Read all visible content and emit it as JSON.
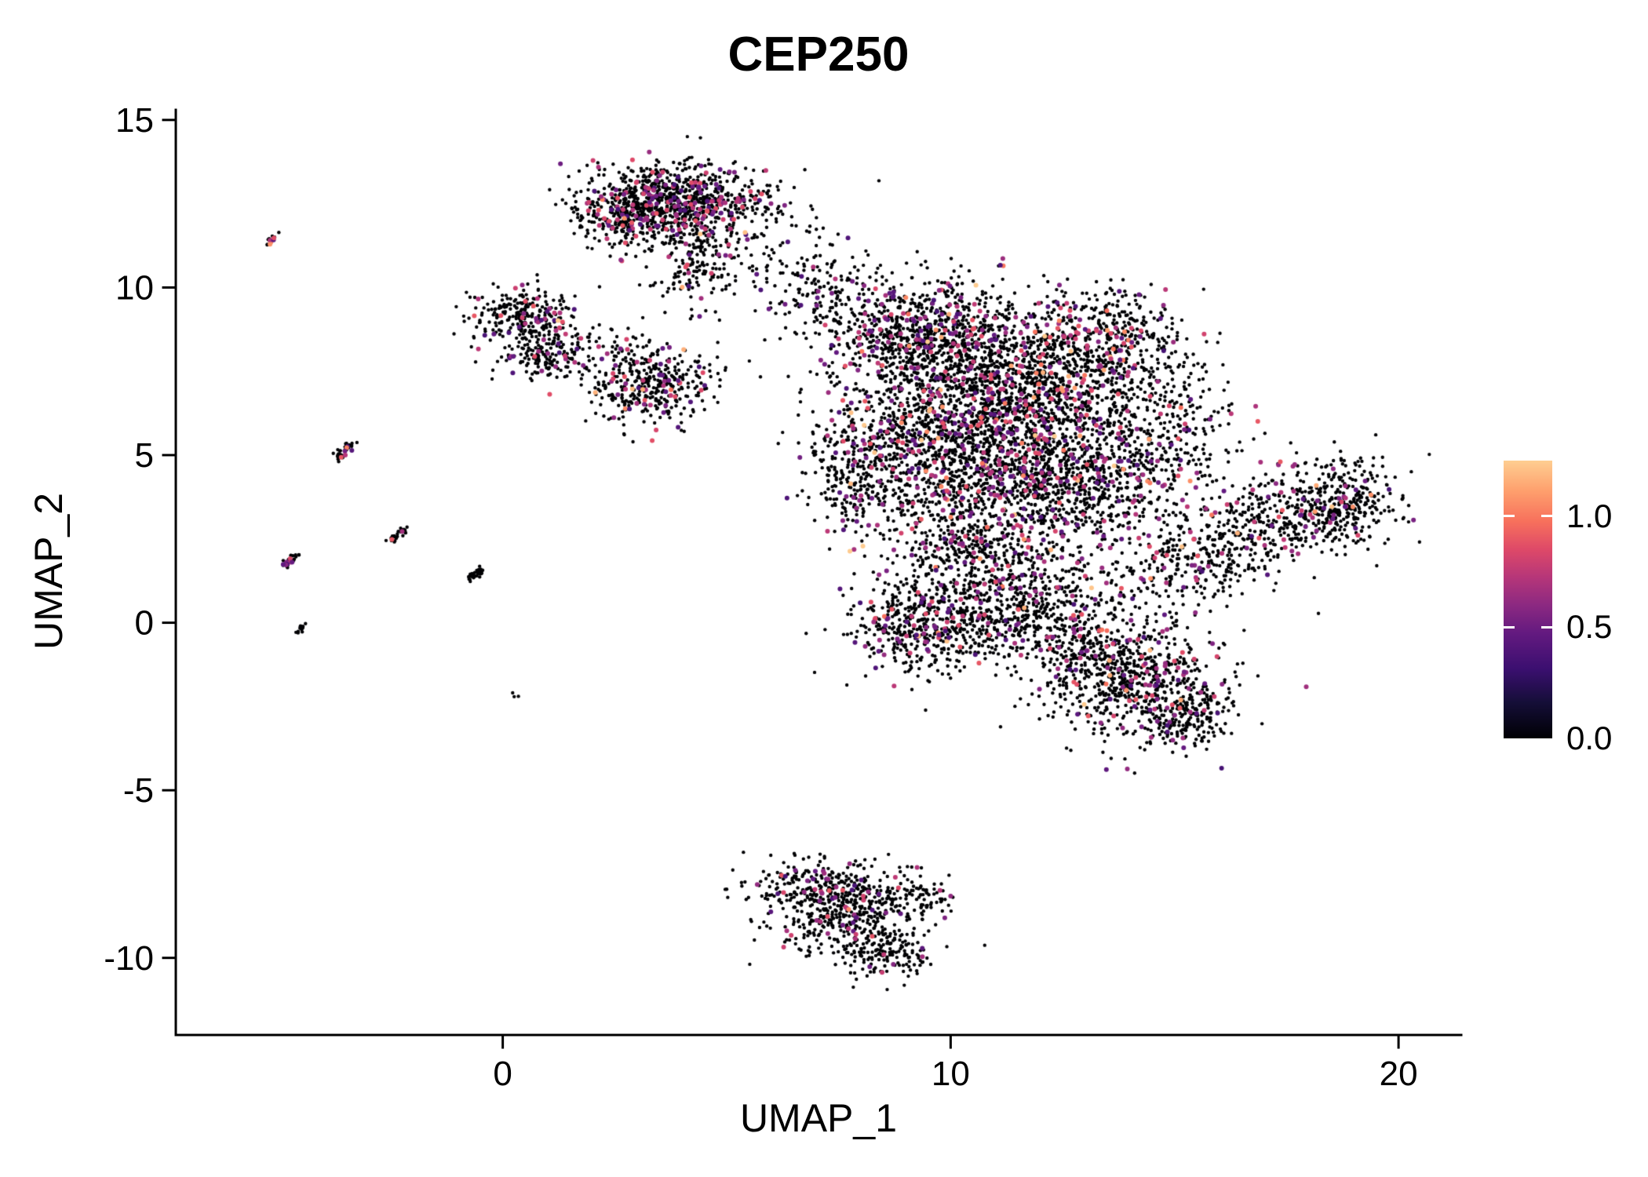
{
  "title": "CEP250",
  "x_axis": {
    "label": "UMAP_1",
    "ticks": [
      0,
      10,
      20
    ]
  },
  "y_axis": {
    "label": "UMAP_2",
    "ticks": [
      15,
      10,
      5,
      0,
      -5,
      -10
    ]
  },
  "legend": {
    "domain": [
      0,
      1.25
    ],
    "ticks": [
      {
        "value": 1.0,
        "label": "1.0"
      },
      {
        "value": 0.5,
        "label": "0.5"
      },
      {
        "value": 0.0,
        "label": "0.0"
      }
    ]
  },
  "chart_data": {
    "type": "scatter",
    "title": "CEP250",
    "xlabel": "UMAP_1",
    "ylabel": "UMAP_2",
    "xlim": [
      -7.3,
      21.4
    ],
    "ylim": [
      -12.3,
      15.3
    ],
    "x_ticks": [
      0,
      10,
      20
    ],
    "y_ticks": [
      15,
      10,
      5,
      0,
      -5,
      -10
    ],
    "grid": false,
    "legend_position": "right",
    "color_scale": {
      "name": "magma",
      "domain": [
        0,
        1.25
      ],
      "stops": [
        [
          0.0,
          "#000004"
        ],
        [
          0.13,
          "#150E38"
        ],
        [
          0.25,
          "#3B0F70"
        ],
        [
          0.38,
          "#641A80"
        ],
        [
          0.48,
          "#8C2981"
        ],
        [
          0.58,
          "#B63679"
        ],
        [
          0.68,
          "#DE4968"
        ],
        [
          0.78,
          "#F7705C"
        ],
        [
          0.89,
          "#FE9F6D"
        ],
        [
          1.0,
          "#FECE91"
        ]
      ]
    },
    "point_style": {
      "radius_zero": 2.2,
      "radius_expressed": 3.0
    },
    "seed": 42,
    "clusters": [
      {
        "name": "top-blob-core",
        "cx": 3.9,
        "cy": 12.6,
        "sx": 1.05,
        "sy": 0.55,
        "n": 780,
        "pm": 0.16,
        "ph": 0.012
      },
      {
        "name": "top-blob-left",
        "cx": 2.9,
        "cy": 12.1,
        "sx": 0.55,
        "sy": 0.5,
        "n": 240,
        "pm": 0.17,
        "ph": 0.01
      },
      {
        "name": "top-blob-tail",
        "cx": 4.3,
        "cy": 10.9,
        "sx": 0.45,
        "sy": 0.75,
        "n": 210,
        "pm": 0.12,
        "ph": 0.005
      },
      {
        "name": "top-bridge",
        "cx": 6.0,
        "cy": 11.4,
        "sx": 0.85,
        "sy": 0.75,
        "n": 90,
        "pm": 0.05,
        "ph": 0
      },
      {
        "name": "top-bridge-2",
        "cx": 6.7,
        "cy": 10.2,
        "sx": 0.5,
        "sy": 0.5,
        "n": 40,
        "pm": 0.04,
        "ph": 0
      },
      {
        "name": "left-blob-upper",
        "cx": 0.45,
        "cy": 9.1,
        "sx": 0.6,
        "sy": 0.45,
        "n": 270,
        "pm": 0.1,
        "ph": 0.004
      },
      {
        "name": "left-blob-lower",
        "cx": 0.95,
        "cy": 7.95,
        "sx": 0.5,
        "sy": 0.35,
        "n": 150,
        "pm": 0.1,
        "ph": 0.004
      },
      {
        "name": "left-bridge",
        "cx": 2.2,
        "cy": 8.4,
        "sx": 0.55,
        "sy": 0.3,
        "n": 30,
        "pm": 0.05,
        "ph": 0
      },
      {
        "name": "mid-blob",
        "cx": 3.3,
        "cy": 7.1,
        "sx": 0.7,
        "sy": 0.55,
        "n": 400,
        "pm": 0.13,
        "ph": 0.006
      },
      {
        "name": "main-nw",
        "cx": 9.4,
        "cy": 8.6,
        "sx": 1.1,
        "sy": 0.85,
        "n": 850,
        "pm": 0.13,
        "ph": 0.015
      },
      {
        "name": "main-n",
        "cx": 11.8,
        "cy": 7.2,
        "sx": 1.4,
        "sy": 1.1,
        "n": 1300,
        "pm": 0.14,
        "ph": 0.02
      },
      {
        "name": "main-w",
        "cx": 9.8,
        "cy": 5.2,
        "sx": 1.2,
        "sy": 1.1,
        "n": 950,
        "pm": 0.12,
        "ph": 0.015
      },
      {
        "name": "main-c",
        "cx": 12.3,
        "cy": 4.2,
        "sx": 1.3,
        "sy": 1.0,
        "n": 900,
        "pm": 0.13,
        "ph": 0.015
      },
      {
        "name": "main-s",
        "cx": 10.6,
        "cy": 2.0,
        "sx": 1.0,
        "sy": 1.0,
        "n": 550,
        "pm": 0.1,
        "ph": 0.01
      },
      {
        "name": "main-sw",
        "cx": 9.4,
        "cy": -0.2,
        "sx": 0.85,
        "sy": 0.65,
        "n": 460,
        "pm": 0.12,
        "ph": 0.01
      },
      {
        "name": "main-se",
        "cx": 11.9,
        "cy": 0.4,
        "sx": 1.25,
        "sy": 0.8,
        "n": 460,
        "pm": 0.1,
        "ph": 0.01
      },
      {
        "name": "main-e-sparse",
        "cx": 14.6,
        "cy": 5.6,
        "sx": 0.95,
        "sy": 1.45,
        "n": 380,
        "pm": 0.1,
        "ph": 0.01
      },
      {
        "name": "main-left-arm",
        "cx": 7.9,
        "cy": 4.6,
        "sx": 0.55,
        "sy": 1.15,
        "n": 260,
        "pm": 0.1,
        "ph": 0.006
      },
      {
        "name": "main-ne",
        "cx": 13.6,
        "cy": 8.6,
        "sx": 0.85,
        "sy": 0.7,
        "n": 300,
        "pm": 0.12,
        "ph": 0.015
      },
      {
        "name": "main-top-bridge",
        "cx": 7.4,
        "cy": 9.7,
        "sx": 0.7,
        "sy": 0.6,
        "n": 90,
        "pm": 0.06,
        "ph": 0
      },
      {
        "name": "isthmus",
        "cx": 12.9,
        "cy": -0.9,
        "sx": 0.7,
        "sy": 0.5,
        "n": 150,
        "pm": 0.1,
        "ph": 0.006
      },
      {
        "name": "right-wing",
        "band": true,
        "x1": 14.6,
        "y1": 1.5,
        "x2": 19.4,
        "y2": 4.1,
        "w": 0.72,
        "n": 740,
        "pm": 0.09,
        "ph": 0.008
      },
      {
        "name": "right-wing-knot",
        "cx": 18.7,
        "cy": 3.3,
        "sx": 0.55,
        "sy": 0.5,
        "n": 150,
        "pm": 0.1,
        "ph": 0.008
      },
      {
        "name": "lower-right-blob",
        "cx": 14.2,
        "cy": -1.7,
        "sx": 1.05,
        "sy": 0.85,
        "n": 640,
        "pm": 0.12,
        "ph": 0.01
      },
      {
        "name": "lower-right-tail",
        "cx": 15.2,
        "cy": -2.9,
        "sx": 0.5,
        "sy": 0.5,
        "n": 150,
        "pm": 0.1,
        "ph": 0.006
      },
      {
        "name": "bottom-blob-top",
        "cx": 7.3,
        "cy": -8.0,
        "sx": 0.9,
        "sy": 0.5,
        "n": 350,
        "pm": 0.08,
        "ph": 0.004
      },
      {
        "name": "bottom-blob-mid",
        "cx": 7.9,
        "cy": -9.0,
        "sx": 0.8,
        "sy": 0.55,
        "n": 300,
        "pm": 0.08,
        "ph": 0.003
      },
      {
        "name": "bottom-blob-tip",
        "cx": 8.6,
        "cy": -9.9,
        "sx": 0.45,
        "sy": 0.35,
        "n": 120,
        "pm": 0.08,
        "ph": 0
      },
      {
        "name": "bottom-hook",
        "cx": 9.2,
        "cy": -8.2,
        "sx": 0.35,
        "sy": 0.3,
        "n": 70,
        "pm": 0.05,
        "ph": 0
      },
      {
        "name": "streak-1",
        "band": true,
        "x1": -5.3,
        "y1": 11.25,
        "x2": -5.05,
        "y2": 11.55,
        "w": 0.05,
        "n": 14,
        "pm": 0.3,
        "ph": 0.05
      },
      {
        "name": "streak-2",
        "band": true,
        "x1": -3.7,
        "y1": 4.9,
        "x2": -3.35,
        "y2": 5.4,
        "w": 0.06,
        "n": 40,
        "pm": 0.15,
        "ph": 0.02
      },
      {
        "name": "streak-3",
        "band": true,
        "x1": -2.5,
        "y1": 2.45,
        "x2": -2.2,
        "y2": 2.8,
        "w": 0.05,
        "n": 30,
        "pm": 0.1,
        "ph": 0
      },
      {
        "name": "streak-4",
        "band": true,
        "x1": -4.9,
        "y1": 1.65,
        "x2": -4.6,
        "y2": 2.0,
        "w": 0.05,
        "n": 30,
        "pm": 0.22,
        "ph": 0
      },
      {
        "name": "streak-5",
        "band": true,
        "x1": -0.75,
        "y1": 1.3,
        "x2": -0.45,
        "y2": 1.6,
        "w": 0.05,
        "n": 35,
        "pm": 0.05,
        "ph": 0
      },
      {
        "name": "streak-6",
        "band": true,
        "x1": -4.6,
        "y1": -0.3,
        "x2": -4.45,
        "y2": -0.05,
        "w": 0.04,
        "n": 12,
        "pm": 0,
        "ph": 0
      },
      {
        "name": "dot-outlier",
        "cx": 0.3,
        "cy": -2.1,
        "sx": 0.05,
        "sy": 0.05,
        "n": 3,
        "pm": 0,
        "ph": 0
      }
    ]
  }
}
